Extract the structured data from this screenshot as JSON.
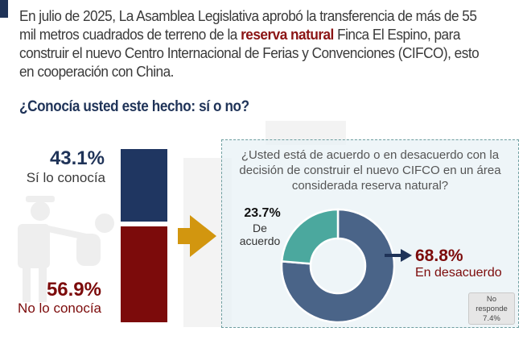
{
  "intro": {
    "text_before": "En julio de 2025, La Asamblea Legislativa aprobó la transferencia de más de 55 mil metros cuadrados de terreno de la ",
    "highlight": "reserva natural",
    "text_after": " Finca El Espino, para construir el nuevo Centro Internacional de Ferias y Convenciones (CIFCO), esto en cooperación con China."
  },
  "question": "¿Conocía usted este hecho: sí o no?",
  "colors": {
    "navy": "#1f3661",
    "darkred": "#7c0b0b",
    "teal": "#4ba89e",
    "slate": "#4a6488",
    "gold": "#d2960f"
  },
  "chart_data": [
    {
      "type": "bar",
      "title": "¿Conocía usted este hecho: sí o no?",
      "stacked": true,
      "categories": [
        "Sí lo conocía",
        "No lo conocía"
      ],
      "values": [
        43.1,
        56.9
      ],
      "labels": [
        "43.1%",
        "56.9%"
      ],
      "unit": "%"
    },
    {
      "type": "pie",
      "donut": true,
      "title": "¿Usted está de acuerdo o en desacuerdo con la decisión de construir el nuevo CIFCO en un área considerada reserva natural?",
      "categories": [
        "De acuerdo",
        "En desacuerdo",
        "No responde"
      ],
      "values": [
        23.7,
        68.8,
        7.4
      ],
      "labels": [
        "23.7%",
        "68.8%",
        "7.4%"
      ],
      "unit": "%"
    }
  ],
  "known": {
    "yes_value": "43.1%",
    "yes_label": "Sí lo conocía",
    "no_value": "56.9%",
    "no_label": "No lo conocía"
  },
  "panel": {
    "question": "¿Usted está de acuerdo o en desacuerdo con la decisión de construir el nuevo CIFCO en un área considerada reserva natural?",
    "agree_value": "23.7%",
    "agree_label": "De acuerdo",
    "disagree_value": "68.8%",
    "disagree_label": "En desacuerdo",
    "no_response_label": "No responde",
    "no_response_value": "7.4%"
  }
}
